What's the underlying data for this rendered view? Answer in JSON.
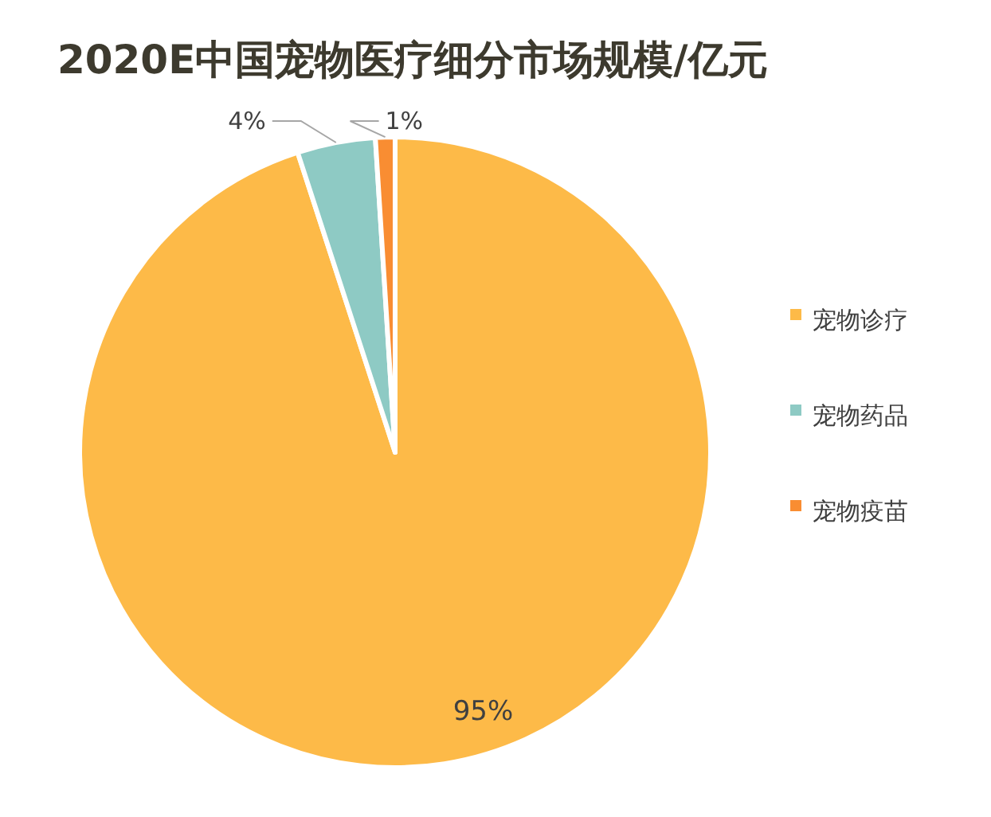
{
  "chart_data": {
    "type": "pie",
    "title": "2020E中国宠物医疗细分市场规模/亿元",
    "categories": [
      "宠物诊疗",
      "宠物药品",
      "宠物疫苗"
    ],
    "values": [
      95,
      4,
      1
    ],
    "colors": [
      "#fdba48",
      "#8ecac4",
      "#f98d32"
    ],
    "value_labels": [
      "95%",
      "4%",
      "1%"
    ],
    "legend": "right"
  }
}
